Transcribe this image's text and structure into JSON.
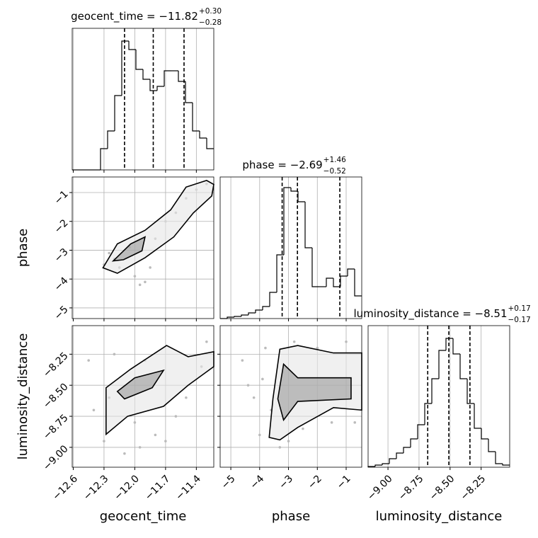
{
  "chart_data": {
    "type": "corner",
    "grid": true,
    "hist_color": "#000000",
    "contour_color": "#000000",
    "point_color": "#bbbbbb",
    "parameters": [
      {
        "name": "geocent_time",
        "title": "geocent_time = −11.82",
        "title_sup": "+0.30",
        "title_sub": "−0.28",
        "lim": [
          -12.61,
          -11.23
        ],
        "ticks": [
          {
            "value": -12.6,
            "label": "−12.6"
          },
          {
            "value": -12.3,
            "label": "−12.3"
          },
          {
            "value": -12.0,
            "label": "−12.0"
          },
          {
            "value": -11.7,
            "label": "−11.7"
          },
          {
            "value": -11.4,
            "label": "−11.4"
          }
        ],
        "quantiles": [
          -12.1,
          -11.82,
          -11.52
        ],
        "hist_ylim": [
          0,
          200
        ],
        "bins": [
          -12.61,
          -12.541,
          -12.472,
          -12.403,
          -12.334,
          -12.265,
          -12.196,
          -12.127,
          -12.058,
          -11.989,
          -11.92,
          -11.851,
          -11.782,
          -11.713,
          -11.644,
          -11.575,
          -11.506,
          -11.437,
          -11.368,
          -11.299,
          -11.23
        ],
        "counts": [
          0,
          0,
          0,
          0,
          30,
          55,
          105,
          182,
          170,
          142,
          128,
          112,
          118,
          140,
          140,
          125,
          95,
          55,
          45,
          30
        ]
      },
      {
        "name": "phase",
        "title": "phase = −2.69",
        "title_sup": "+1.46",
        "title_sub": "−0.52",
        "lim": [
          -5.37,
          -0.46
        ],
        "ticks": [
          {
            "value": -5,
            "label": "−5"
          },
          {
            "value": -4,
            "label": "−4"
          },
          {
            "value": -3,
            "label": "−3"
          },
          {
            "value": -2,
            "label": "−2"
          },
          {
            "value": -1,
            "label": "−1"
          }
        ],
        "quantiles": [
          -3.22,
          -2.69,
          -1.22
        ],
        "hist_ylim": [
          0,
          200
        ],
        "bins": [
          -5.37,
          -5.125,
          -4.879,
          -4.634,
          -4.388,
          -4.143,
          -3.897,
          -3.652,
          -3.406,
          -3.161,
          -2.915,
          -2.67,
          -2.424,
          -2.179,
          -1.933,
          -1.688,
          -1.442,
          -1.197,
          -0.951,
          -0.706,
          -0.46
        ],
        "counts": [
          0,
          2,
          3,
          5,
          8,
          12,
          17,
          37,
          90,
          185,
          180,
          165,
          100,
          45,
          45,
          57,
          45,
          60,
          70,
          32
        ]
      },
      {
        "name": "luminosity_distance",
        "title": "luminosity_distance = −8.51",
        "title_sup": "+0.17",
        "title_sub": "−0.17",
        "lim": [
          -9.16,
          -8.02
        ],
        "ticks": [
          {
            "value": -9.0,
            "label": "−9.00"
          },
          {
            "value": -8.75,
            "label": "−8.75"
          },
          {
            "value": -8.5,
            "label": "−8.50"
          },
          {
            "value": -8.25,
            "label": "−8.25"
          }
        ],
        "quantiles": [
          -8.68,
          -8.51,
          -8.34
        ],
        "hist_ylim": [
          0,
          200
        ],
        "bins": [
          -9.16,
          -9.103,
          -9.046,
          -8.989,
          -8.932,
          -8.875,
          -8.818,
          -8.761,
          -8.704,
          -8.647,
          -8.59,
          -8.533,
          -8.476,
          -8.419,
          -8.362,
          -8.305,
          -8.248,
          -8.191,
          -8.134,
          -8.077,
          -8.02
        ],
        "counts": [
          1,
          3,
          5,
          12,
          20,
          28,
          40,
          60,
          90,
          125,
          165,
          182,
          160,
          125,
          90,
          55,
          40,
          22,
          5,
          3
        ]
      }
    ],
    "pair_panels": [
      {
        "points": {
          "x": [
            -12.3,
            -12.25,
            -12.15,
            -12.0,
            -11.95,
            -11.9,
            -11.8,
            -11.7,
            -11.6,
            -11.5,
            -11.4,
            -11.3,
            -12.05,
            -11.85,
            -12.2
          ],
          "y": [
            -3.5,
            -3.1,
            -3.6,
            -3.9,
            -4.2,
            -4.1,
            -2.6,
            -2.0,
            -1.7,
            -1.2,
            -0.9,
            -0.7,
            -2.9,
            -3.6,
            -3.3
          ]
        },
        "contours": [
          {
            "x": [
              -12.31,
              -12.17,
              -11.9,
              -11.65,
              -11.5,
              -11.3,
              -11.23,
              -11.25,
              -11.43,
              -11.62,
              -11.9,
              -12.17
            ],
            "y": [
              -3.61,
              -2.78,
              -2.31,
              -1.6,
              -0.81,
              -0.58,
              -0.72,
              -1.12,
              -1.71,
              -2.54,
              -3.26,
              -3.8
            ]
          },
          {
            "x": [
              -12.21,
              -12.04,
              -11.9,
              -11.93,
              -12.11
            ],
            "y": [
              -3.37,
              -2.78,
              -2.54,
              -3.02,
              -3.33
            ]
          }
        ]
      },
      {
        "points": {
          "x": [
            -12.45,
            -12.3,
            -12.25,
            -12.1,
            -12.0,
            -11.9,
            -11.8,
            -11.6,
            -11.5,
            -11.35,
            -11.3,
            -12.2,
            -11.7,
            -11.95,
            -12.4
          ],
          "y": [
            -8.3,
            -8.95,
            -8.6,
            -9.05,
            -8.8,
            -8.3,
            -8.9,
            -8.75,
            -8.6,
            -8.35,
            -8.15,
            -8.25,
            -8.95,
            -9.0,
            -8.7
          ]
        },
        "contours": [
          {
            "x": [
              -12.28,
              -12.28,
              -12.04,
              -11.69,
              -11.48,
              -11.23,
              -11.23,
              -11.48,
              -11.72,
              -12.07
            ],
            "y": [
              -8.895,
              -8.52,
              -8.37,
              -8.18,
              -8.27,
              -8.23,
              -8.35,
              -8.5,
              -8.67,
              -8.75
            ]
          },
          {
            "x": [
              -12.17,
              -12.0,
              -11.72,
              -11.83,
              -12.1
            ],
            "y": [
              -8.55,
              -8.44,
              -8.38,
              -8.52,
              -8.61
            ]
          }
        ]
      },
      {
        "points": {
          "x": [
            -4.6,
            -4.2,
            -4.0,
            -3.8,
            -3.6,
            -3.3,
            -3.0,
            -2.5,
            -2.0,
            -1.5,
            -1.0,
            -0.7,
            -4.4,
            -2.8,
            -3.9
          ],
          "y": [
            -8.3,
            -8.6,
            -8.9,
            -8.2,
            -8.7,
            -9.0,
            -8.95,
            -8.85,
            -8.2,
            -8.8,
            -8.15,
            -8.8,
            -8.5,
            -8.15,
            -8.45
          ]
        },
        "contours": [
          {
            "x": [
              -3.67,
              -3.54,
              -3.3,
              -2.68,
              -1.44,
              -0.46,
              -0.46,
              -1.44,
              -2.68,
              -3.3
            ],
            "y": [
              -8.92,
              -8.61,
              -8.21,
              -8.18,
              -8.24,
              -8.24,
              -8.7,
              -8.68,
              -8.84,
              -8.94
            ]
          },
          {
            "x": [
              -3.37,
              -3.17,
              -2.68,
              -0.83,
              -0.83,
              -2.68,
              -3.17
            ],
            "y": [
              -8.61,
              -8.33,
              -8.44,
              -8.44,
              -8.61,
              -8.63,
              -8.78
            ]
          }
        ]
      }
    ]
  }
}
